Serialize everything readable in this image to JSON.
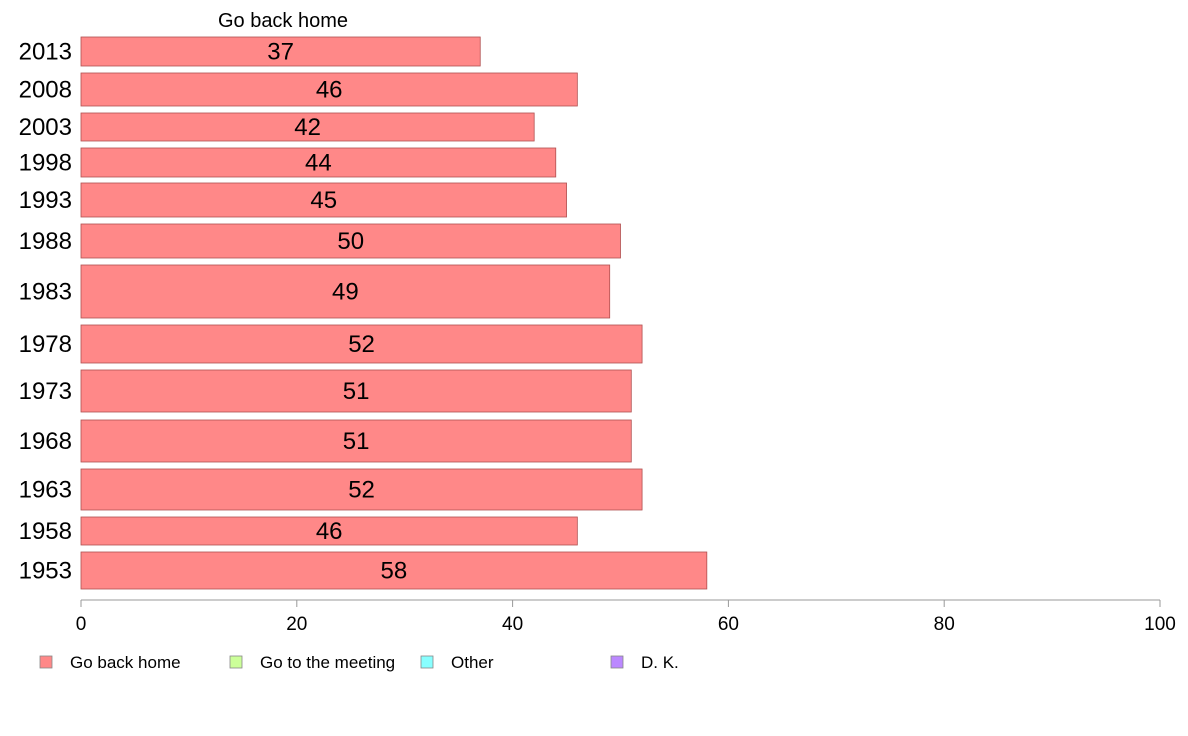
{
  "chart_data": {
    "type": "bar",
    "orientation": "horizontal",
    "title": "Go back home",
    "categories": [
      "2013",
      "2008",
      "2003",
      "1998",
      "1993",
      "1988",
      "1983",
      "1978",
      "1973",
      "1968",
      "1963",
      "1958",
      "1953"
    ],
    "series": [
      {
        "name": "Go back home",
        "values": [
          37,
          46,
          42,
          44,
          45,
          50,
          49,
          52,
          51,
          51,
          52,
          46,
          58
        ],
        "color": "#ff8888"
      }
    ],
    "xlim": [
      0,
      100
    ],
    "xticks": [
      0,
      20,
      40,
      60,
      80,
      100
    ],
    "grid": false,
    "legend": {
      "placement": "bottom-left",
      "items": [
        {
          "label": "Go back home",
          "color": "#ff8888"
        },
        {
          "label": "Go to the meeting",
          "color": "#ccff99"
        },
        {
          "label": "Other",
          "color": "#88ffff"
        },
        {
          "label": "D. K.",
          "color": "#bb88ff"
        }
      ]
    }
  }
}
